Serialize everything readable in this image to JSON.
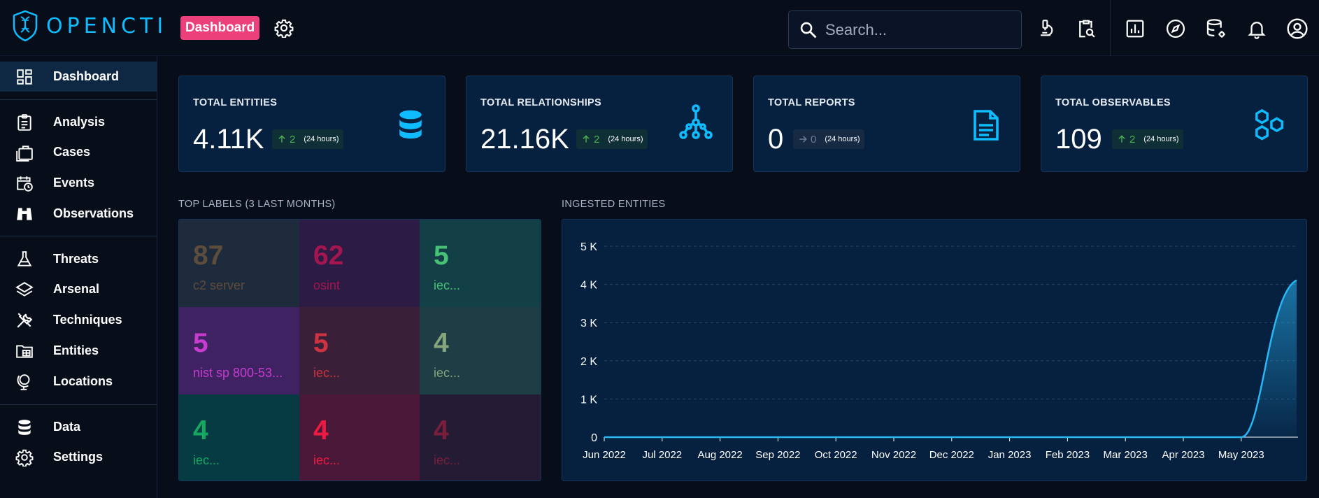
{
  "app": {
    "logo_text": "OPENCTI",
    "page_badge": "Dashboard"
  },
  "search": {
    "placeholder": "Search..."
  },
  "top_icons": [
    "microscope-icon",
    "clipboard-search-icon",
    "chart-box-icon",
    "compass-icon",
    "database-cog-icon",
    "bell-icon",
    "account-circle-icon"
  ],
  "sidebar": {
    "items": [
      {
        "label": "Dashboard",
        "icon": "view-dashboard-icon",
        "active": true
      },
      {
        "label": "Analysis",
        "icon": "clipboard-text-icon"
      },
      {
        "label": "Cases",
        "icon": "briefcase-icon"
      },
      {
        "label": "Events",
        "icon": "calendar-clock-icon"
      },
      {
        "label": "Observations",
        "icon": "binoculars-icon"
      },
      {
        "label": "Threats",
        "icon": "flask-icon"
      },
      {
        "label": "Arsenal",
        "icon": "layers-icon"
      },
      {
        "label": "Techniques",
        "icon": "tools-icon"
      },
      {
        "label": "Entities",
        "icon": "folder-table-icon"
      },
      {
        "label": "Locations",
        "icon": "globe-model-icon"
      },
      {
        "label": "Data",
        "icon": "database-icon"
      },
      {
        "label": "Settings",
        "icon": "cog-icon"
      }
    ]
  },
  "cards": [
    {
      "title": "TOTAL ENTITIES",
      "value": "4.11K",
      "delta": "2",
      "period": "(24 hours)",
      "trend": "up",
      "icon": "database-icon"
    },
    {
      "title": "TOTAL RELATIONSHIPS",
      "value": "21.16K",
      "delta": "2",
      "period": "(24 hours)",
      "trend": "up",
      "icon": "graph-icon"
    },
    {
      "title": "TOTAL REPORTS",
      "value": "0",
      "delta": "0",
      "period": "(24 hours)",
      "trend": "flat",
      "icon": "file-document-icon"
    },
    {
      "title": "TOTAL OBSERVABLES",
      "value": "109",
      "delta": "2",
      "period": "(24 hours)",
      "trend": "up",
      "icon": "hexagon-multiple-icon"
    }
  ],
  "top_labels": {
    "title": "TOP LABELS (3 LAST MONTHS)",
    "items": [
      {
        "count": "87",
        "label": "c2 server",
        "color": "#5d4d3d",
        "bg": "#1e2b3c"
      },
      {
        "count": "62",
        "label": "osint",
        "color": "#a3164f",
        "bg": "#2c1b44"
      },
      {
        "count": "5",
        "label": "iec...",
        "color": "#46c175",
        "bg": "#133f46"
      },
      {
        "count": "5",
        "label": "nist sp 800-53...",
        "color": "#c73ccf",
        "bg": "#3f2262"
      },
      {
        "count": "5",
        "label": "iec...",
        "color": "#cf3341",
        "bg": "#391f38"
      },
      {
        "count": "4",
        "label": "iec...",
        "color": "#86a57e",
        "bg": "#1f3d44"
      },
      {
        "count": "4",
        "label": "iec...",
        "color": "#14a860",
        "bg": "#063b43"
      },
      {
        "count": "4",
        "label": "iec...",
        "color": "#ef1a42",
        "bg": "#4a1838"
      },
      {
        "count": "4",
        "label": "iec...",
        "color": "#7a1e3c",
        "bg": "#241b34"
      }
    ]
  },
  "chart_data": {
    "type": "area",
    "title": "INGESTED ENTITIES",
    "x": [
      "Jun 2022",
      "Jul 2022",
      "Aug 2022",
      "Sep 2022",
      "Oct 2022",
      "Nov 2022",
      "Dec 2022",
      "Jan 2023",
      "Feb 2023",
      "Mar 2023",
      "Apr 2023",
      "May 2023"
    ],
    "values": [
      0,
      0,
      0,
      0,
      0,
      0,
      0,
      0,
      0,
      0,
      0,
      0
    ],
    "last_point": {
      "x": "end of May 2023",
      "value": 4110
    },
    "y_ticks": [
      "0",
      "1 K",
      "2 K",
      "3 K",
      "4 K",
      "5 K"
    ],
    "ylim": [
      0,
      5000
    ],
    "grid": true,
    "color": "#29b6f6"
  }
}
